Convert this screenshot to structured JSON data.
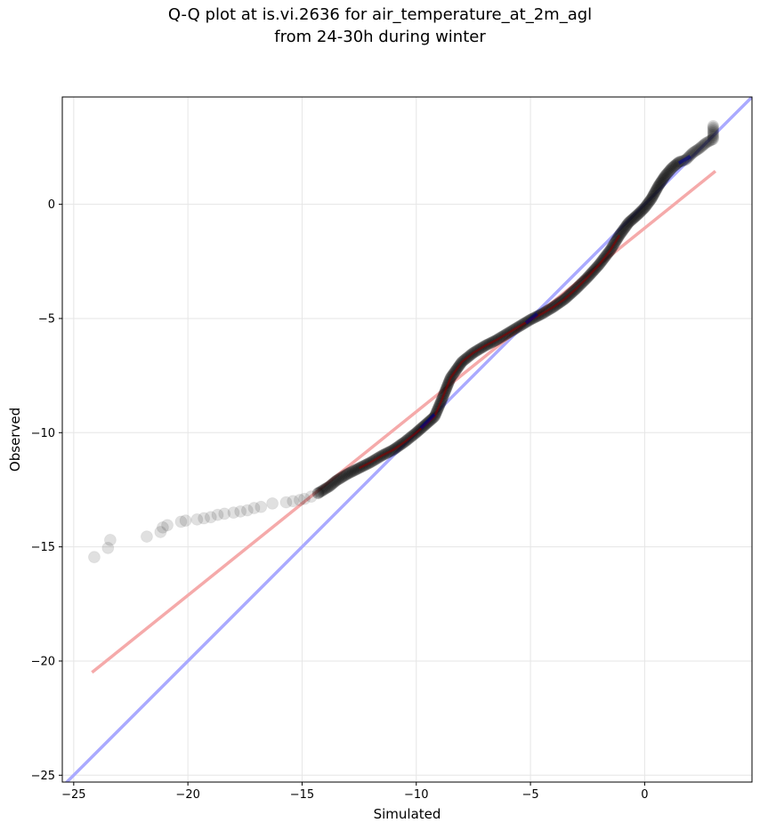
{
  "figure": {
    "title_line1": "Q-Q plot at is.vi.2636 for air_temperature_at_2m_agl",
    "title_line2": "from 24-30h during winter"
  },
  "chart_data": {
    "type": "scatter",
    "title": "Q-Q plot at is.vi.2636 for air_temperature_at_2m_agl\nfrom 24-30h during winter",
    "xlabel": "Simulated",
    "ylabel": "Observed",
    "xlim": [
      -25.5,
      4.7
    ],
    "ylim": [
      -25.3,
      4.7
    ],
    "xticks": [
      -25,
      -20,
      -15,
      -10,
      -5,
      0
    ],
    "yticks": [
      -25,
      -20,
      -15,
      -10,
      -5,
      0
    ],
    "xtick_labels": [
      "−25",
      "−20",
      "−15",
      "−10",
      "−5",
      "0"
    ],
    "ytick_labels": [
      "−25",
      "−20",
      "−15",
      "−10",
      "−5",
      "0"
    ],
    "grid": true,
    "colors": {
      "points": "#000000",
      "identity_line": "#aaaaff",
      "fit_line": "#f5aaaa",
      "central_red": "#8b0000",
      "central_blue": "#00008b"
    },
    "tail_points": [
      [
        -24.1,
        -15.45
      ],
      [
        -23.5,
        -15.05
      ],
      [
        -23.4,
        -14.7
      ],
      [
        -21.8,
        -14.55
      ],
      [
        -21.2,
        -14.35
      ],
      [
        -21.1,
        -14.15
      ],
      [
        -20.9,
        -14.05
      ],
      [
        -20.3,
        -13.9
      ],
      [
        -20.1,
        -13.85
      ],
      [
        -19.6,
        -13.8
      ],
      [
        -19.3,
        -13.75
      ],
      [
        -19.0,
        -13.7
      ],
      [
        -18.7,
        -13.6
      ],
      [
        -18.4,
        -13.55
      ],
      [
        -18.0,
        -13.5
      ],
      [
        -17.7,
        -13.45
      ],
      [
        -17.4,
        -13.4
      ],
      [
        -17.1,
        -13.3
      ],
      [
        -16.8,
        -13.25
      ],
      [
        -16.3,
        -13.1
      ],
      [
        -15.7,
        -13.05
      ],
      [
        -15.4,
        -13.0
      ],
      [
        -15.1,
        -12.95
      ],
      [
        -14.9,
        -12.9
      ],
      [
        -14.6,
        -12.8
      ],
      [
        -14.3,
        -12.65
      ]
    ],
    "dense_points": [
      [
        -14.3,
        -12.65
      ],
      [
        -13.8,
        -12.35
      ],
      [
        -13.5,
        -12.1
      ],
      [
        -13.0,
        -11.8
      ],
      [
        -12.5,
        -11.55
      ],
      [
        -12.0,
        -11.3
      ],
      [
        -11.5,
        -11.0
      ],
      [
        -11.0,
        -10.75
      ],
      [
        -10.5,
        -10.4
      ],
      [
        -10.0,
        -10.0
      ],
      [
        -9.6,
        -9.65
      ],
      [
        -9.2,
        -9.3
      ],
      [
        -8.9,
        -8.6
      ],
      [
        -8.5,
        -7.6
      ],
      [
        -8.0,
        -6.9
      ],
      [
        -7.5,
        -6.5
      ],
      [
        -7.0,
        -6.2
      ],
      [
        -6.5,
        -5.95
      ],
      [
        -6.0,
        -5.65
      ],
      [
        -5.5,
        -5.35
      ],
      [
        -5.0,
        -5.05
      ],
      [
        -4.5,
        -4.8
      ],
      [
        -4.0,
        -4.5
      ],
      [
        -3.5,
        -4.15
      ],
      [
        -3.0,
        -3.7
      ],
      [
        -2.5,
        -3.2
      ],
      [
        -2.0,
        -2.65
      ],
      [
        -1.5,
        -2.0
      ],
      [
        -1.1,
        -1.35
      ],
      [
        -0.7,
        -0.8
      ],
      [
        -0.3,
        -0.45
      ],
      [
        0.0,
        -0.15
      ],
      [
        0.3,
        0.25
      ],
      [
        0.6,
        0.8
      ],
      [
        0.9,
        1.25
      ],
      [
        1.2,
        1.6
      ],
      [
        1.5,
        1.85
      ],
      [
        1.8,
        1.95
      ],
      [
        2.1,
        2.25
      ],
      [
        2.4,
        2.45
      ],
      [
        2.7,
        2.7
      ],
      [
        3.0,
        2.85
      ],
      [
        3.0,
        3.5
      ]
    ],
    "blue_segments": [
      [
        [
          -9.8,
          -9.8
        ],
        [
          -9.2,
          -9.2
        ]
      ],
      [
        [
          -5.2,
          -5.2
        ],
        [
          -4.7,
          -4.8
        ]
      ],
      [
        [
          1.5,
          1.8
        ],
        [
          2.0,
          2.1
        ]
      ]
    ],
    "identity_line": {
      "x": [
        -25.5,
        4.7
      ],
      "y": [
        -25.5,
        4.7
      ]
    },
    "fit_line": {
      "x": [
        -24.2,
        3.1
      ],
      "y": [
        -20.5,
        1.45
      ]
    }
  }
}
